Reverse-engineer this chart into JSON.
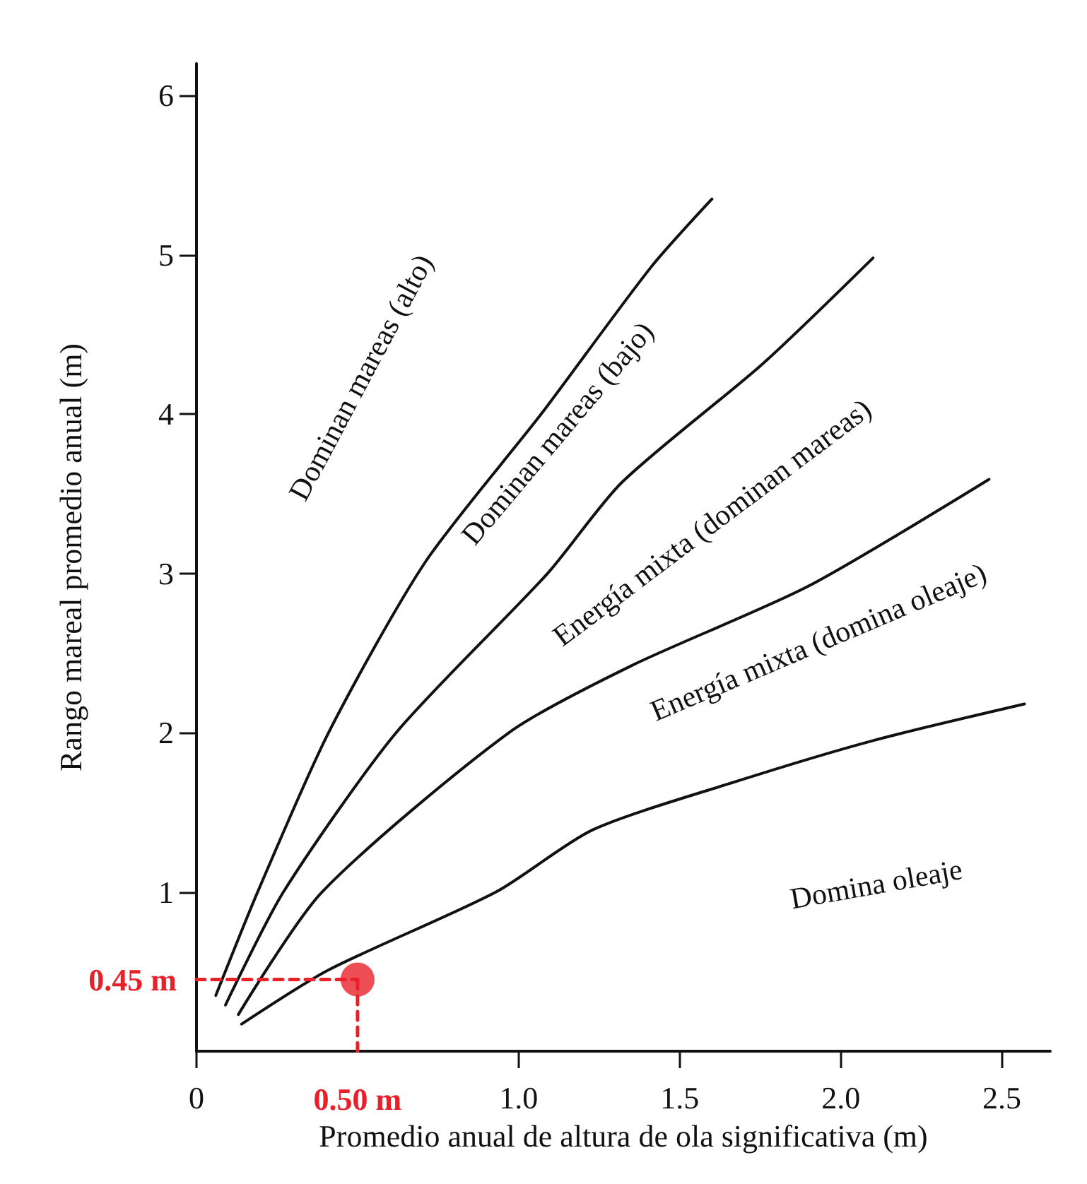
{
  "chart_data": {
    "type": "line",
    "xlabel": "Promedio anual de altura de ola significativa (m)",
    "ylabel": "Rango mareal promedio anual (m)",
    "xlim": [
      0,
      2.65
    ],
    "ylim": [
      0,
      6.2
    ],
    "xticks": [
      0,
      {
        "value": 1,
        "label": "1.0"
      },
      {
        "value": 1.5,
        "label": "1.5"
      },
      {
        "value": 2,
        "label": "2.0"
      },
      {
        "value": 2.5,
        "label": "2.5"
      }
    ],
    "yticks": [
      1,
      2,
      3,
      4,
      5,
      6
    ],
    "grid": false,
    "marker": "none",
    "line_style": "solid",
    "series": [
      {
        "color": "#111111",
        "x": [
          0.06,
          0.19,
          0.41,
          0.71,
          1.07,
          1.41,
          1.6
        ],
        "values": [
          0.35,
          1.0,
          2.0,
          3.07,
          4.0,
          4.92,
          5.35
        ]
      },
      {
        "color": "#111111",
        "x": [
          0.09,
          0.27,
          0.62,
          1.09,
          1.32,
          1.76,
          2.1
        ],
        "values": [
          0.29,
          1.0,
          2.0,
          3.0,
          3.57,
          4.32,
          4.98
        ]
      },
      {
        "color": "#111111",
        "x": [
          0.13,
          0.39,
          0.97,
          1.35,
          1.9,
          2.46
        ],
        "values": [
          0.23,
          1.0,
          2.0,
          2.42,
          2.92,
          3.59
        ]
      },
      {
        "color": "#111111",
        "x": [
          0.14,
          0.41,
          0.93,
          1.23,
          1.67,
          2.1,
          2.57
        ],
        "values": [
          0.17,
          0.51,
          1.0,
          1.39,
          1.69,
          1.95,
          2.18
        ]
      },
      {
        "color": "#e8202a",
        "line_style": "dashed",
        "x": [
          0,
          0.5
        ],
        "values": [
          0.45,
          0.45
        ]
      },
      {
        "color": "#e8202a",
        "line_style": "dashed",
        "x": [
          0.5,
          0.5
        ],
        "values": [
          0,
          0.45
        ]
      },
      {
        "type": "scatter",
        "color": "#e8202a",
        "marker": "circle",
        "x": [
          0.5
        ],
        "values": [
          0.45
        ]
      }
    ],
    "annotations": [
      "Dominan mareas (alto)",
      "Dominan mareas (bajo)",
      "Energía mixta (dominan mareas)",
      "Energía mixta (domina oleaje)",
      "Domina oleaje",
      {
        "text": "0.45 m",
        "x": 0,
        "y": 0.45
      },
      {
        "text": "0.50 m",
        "x": 0.5,
        "y": 0
      }
    ]
  }
}
